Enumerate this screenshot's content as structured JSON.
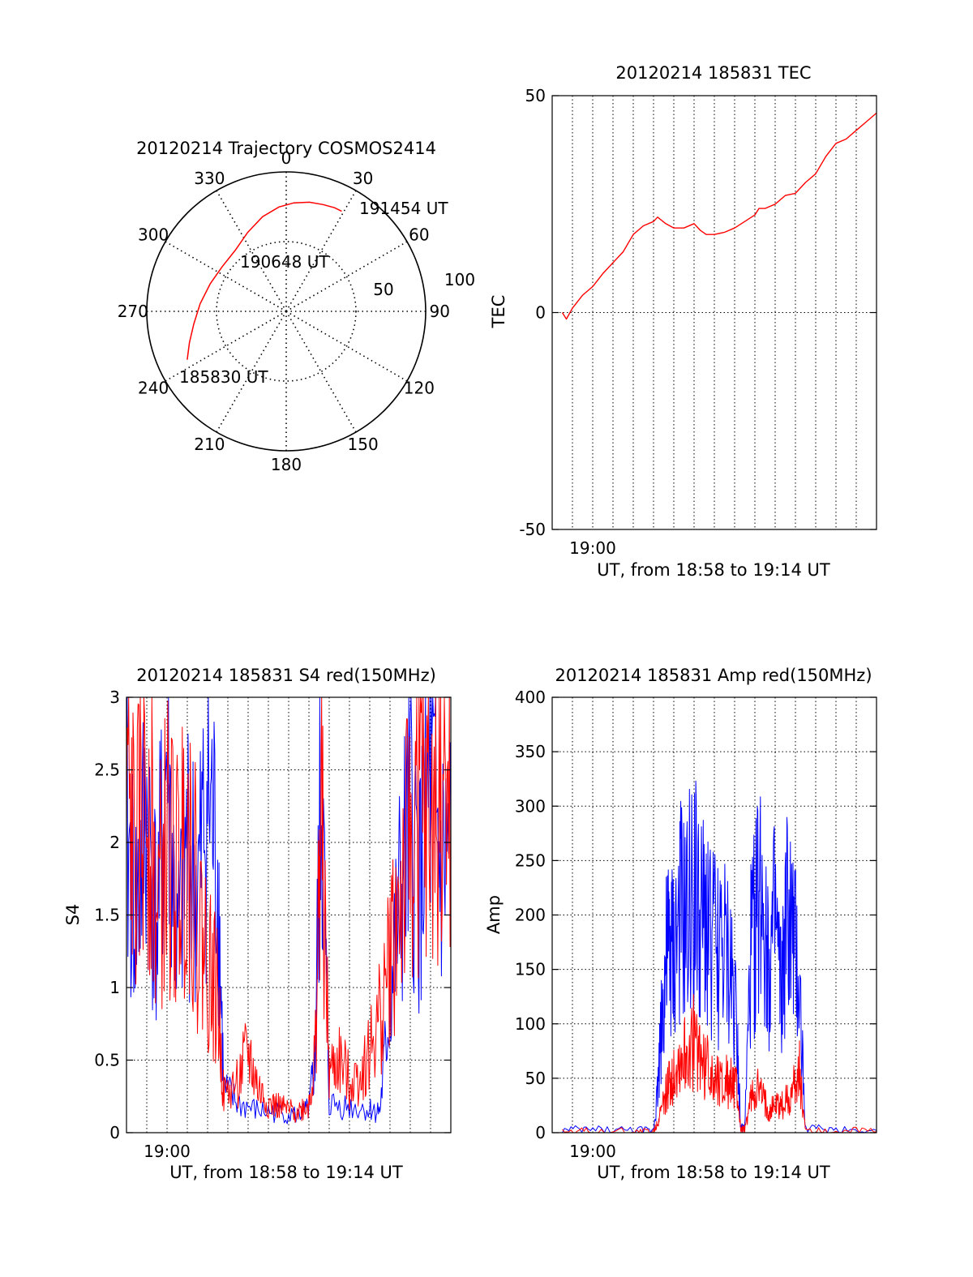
{
  "colors": {
    "red": "#ff0000",
    "blue": "#0000ff",
    "axis": "#000000",
    "grid": "#000000"
  },
  "chart_data": [
    {
      "type": "polar",
      "title": "20120214 Trajectory COSMOS2414",
      "azimuth_labels": [
        "0",
        "30",
        "60",
        "90",
        "120",
        "150",
        "180",
        "210",
        "240",
        "270",
        "300",
        "330"
      ],
      "radius_labels": [
        "50",
        "100"
      ],
      "rlim": [
        0,
        100
      ],
      "grid": true,
      "series": [
        {
          "color": "red",
          "points": [
            {
              "az": 244,
              "r": 79
            },
            {
              "az": 252,
              "r": 73
            },
            {
              "az": 262,
              "r": 67
            },
            {
              "az": 275,
              "r": 62
            },
            {
              "az": 290,
              "r": 58
            },
            {
              "az": 305,
              "r": 56
            },
            {
              "az": 320,
              "r": 57
            },
            {
              "az": 334,
              "r": 63
            },
            {
              "az": 346,
              "r": 70
            },
            {
              "az": 356,
              "r": 75
            },
            {
              "az": 4,
              "r": 78
            },
            {
              "az": 12,
              "r": 80
            },
            {
              "az": 19,
              "r": 81
            },
            {
              "az": 25,
              "r": 82
            },
            {
              "az": 29,
              "r": 82
            }
          ]
        }
      ],
      "annotations": [
        "191454 UT",
        "190648 UT",
        "185830 UT"
      ]
    },
    {
      "type": "line",
      "title": "20120214 185831 TEC",
      "ylabel": "TEC",
      "xlabel": "UT, from 18:58 to 19:14 UT",
      "x_tick_labels": [
        {
          "min": 2,
          "label": "19:00"
        }
      ],
      "xlim": [
        0,
        16
      ],
      "ylim": [
        -50,
        50
      ],
      "y_ticks": [
        -50,
        0,
        50
      ],
      "grid": true,
      "series": [
        {
          "color": "red",
          "x": [
            0.5,
            0.7,
            1.0,
            1.5,
            2.0,
            2.5,
            3.0,
            3.5,
            4.0,
            4.5,
            5.0,
            5.2,
            5.6,
            6.0,
            6.5,
            7.0,
            7.3,
            7.6,
            8.0,
            8.5,
            9.0,
            9.5,
            10.0,
            10.2,
            10.5,
            11.0,
            11.5,
            12.0,
            12.5,
            13.0,
            13.5,
            14.0,
            14.5,
            15.0,
            15.5,
            16.0
          ],
          "y": [
            0,
            -1.5,
            1,
            4,
            6,
            9,
            11.5,
            14,
            18,
            20,
            21,
            22,
            20.5,
            19.5,
            19.5,
            20.5,
            19,
            18,
            18,
            18.5,
            19.5,
            21,
            22.5,
            24,
            24,
            25,
            27,
            27.5,
            30,
            32,
            36,
            39,
            40,
            42,
            44,
            46
          ]
        }
      ]
    },
    {
      "type": "line",
      "title": "20120214 185831 S4 red(150MHz)",
      "ylabel": "S4",
      "xlabel": "UT, from 18:58 to 19:14 UT",
      "x_tick_labels": [
        {
          "min": 2,
          "label": "19:00"
        }
      ],
      "xlim": [
        0,
        16
      ],
      "ylim": [
        0,
        3
      ],
      "y_ticks": [
        0,
        0.5,
        1,
        1.5,
        2,
        2.5,
        3
      ],
      "grid": true,
      "series": [
        {
          "color": "blue",
          "x": [
            0.0,
            0.5,
            1.0,
            1.5,
            2.0,
            2.5,
            3.0,
            3.5,
            4.0,
            4.5,
            4.8,
            5.5,
            6.5,
            7.5,
            8.5,
            9.0,
            9.3,
            9.6,
            10.0,
            11.0,
            12.0,
            12.5,
            13.0,
            13.5,
            14.0,
            14.5,
            15.0,
            15.5,
            16.0
          ],
          "y": [
            2.0,
            1.5,
            2.2,
            1.4,
            2.6,
            1.2,
            2.0,
            1.6,
            2.4,
            1.8,
            0.3,
            0.2,
            0.15,
            0.14,
            0.12,
            0.16,
            0.5,
            2.5,
            0.2,
            0.18,
            0.16,
            0.15,
            0.9,
            1.6,
            2.1,
            1.7,
            2.3,
            1.8,
            2.0
          ]
        },
        {
          "color": "red",
          "x": [
            0.0,
            0.5,
            1.0,
            1.5,
            2.0,
            2.5,
            3.0,
            3.5,
            4.0,
            4.5,
            4.8,
            5.5,
            6.0,
            6.5,
            7.0,
            7.5,
            8.0,
            8.5,
            9.0,
            9.3,
            9.6,
            10.0,
            10.5,
            11.0,
            11.5,
            12.0,
            12.5,
            13.0,
            13.5,
            14.0,
            14.5,
            15.0,
            15.5,
            16.0
          ],
          "y": [
            2.3,
            1.8,
            2.6,
            1.5,
            2.0,
            1.7,
            2.2,
            1.5,
            1.2,
            0.9,
            0.25,
            0.35,
            0.55,
            0.3,
            0.2,
            0.18,
            0.15,
            0.15,
            0.2,
            0.5,
            2.2,
            0.4,
            0.5,
            0.35,
            0.4,
            0.55,
            0.8,
            1.2,
            1.6,
            2.0,
            2.3,
            2.0,
            2.5,
            2.2
          ]
        }
      ]
    },
    {
      "type": "line",
      "title": "20120214 185831 Amp red(150MHz)",
      "ylabel": "Amp",
      "xlabel": "UT, from 18:58 to 19:14 UT",
      "x_tick_labels": [
        {
          "min": 2,
          "label": "19:00"
        }
      ],
      "xlim": [
        0,
        16
      ],
      "ylim": [
        0,
        400
      ],
      "y_ticks": [
        0,
        50,
        100,
        150,
        200,
        250,
        300,
        350,
        400
      ],
      "grid": true,
      "series": [
        {
          "color": "blue",
          "x": [
            0.5,
            2,
            4,
            5.0,
            5.2,
            5.4,
            5.6,
            5.8,
            6.0,
            6.3,
            6.6,
            7.0,
            7.3,
            7.6,
            8.0,
            8.4,
            8.8,
            9.1,
            9.3,
            9.5,
            9.8,
            10.1,
            10.4,
            10.7,
            11.0,
            11.3,
            11.6,
            11.9,
            12.2,
            12.5,
            14,
            16
          ],
          "y": [
            2,
            3,
            2,
            2,
            40,
            100,
            150,
            170,
            160,
            200,
            185,
            230,
            180,
            200,
            170,
            165,
            150,
            110,
            4,
            5,
            160,
            200,
            230,
            150,
            190,
            120,
            200,
            170,
            130,
            4,
            3,
            2
          ]
        },
        {
          "color": "red",
          "x": [
            0.5,
            2,
            4,
            5.0,
            5.2,
            5.4,
            5.6,
            5.8,
            6.0,
            6.3,
            6.6,
            7.0,
            7.3,
            7.6,
            8.0,
            8.4,
            8.8,
            9.1,
            9.3,
            9.5,
            9.8,
            10.1,
            10.4,
            10.7,
            11.0,
            11.3,
            11.6,
            11.9,
            12.2,
            12.5,
            14,
            16
          ],
          "y": [
            1,
            1,
            1,
            1,
            10,
            20,
            35,
            45,
            55,
            65,
            70,
            85,
            70,
            60,
            55,
            50,
            45,
            40,
            3,
            2,
            30,
            40,
            30,
            20,
            25,
            25,
            30,
            40,
            55,
            3,
            1,
            1
          ]
        }
      ]
    }
  ]
}
